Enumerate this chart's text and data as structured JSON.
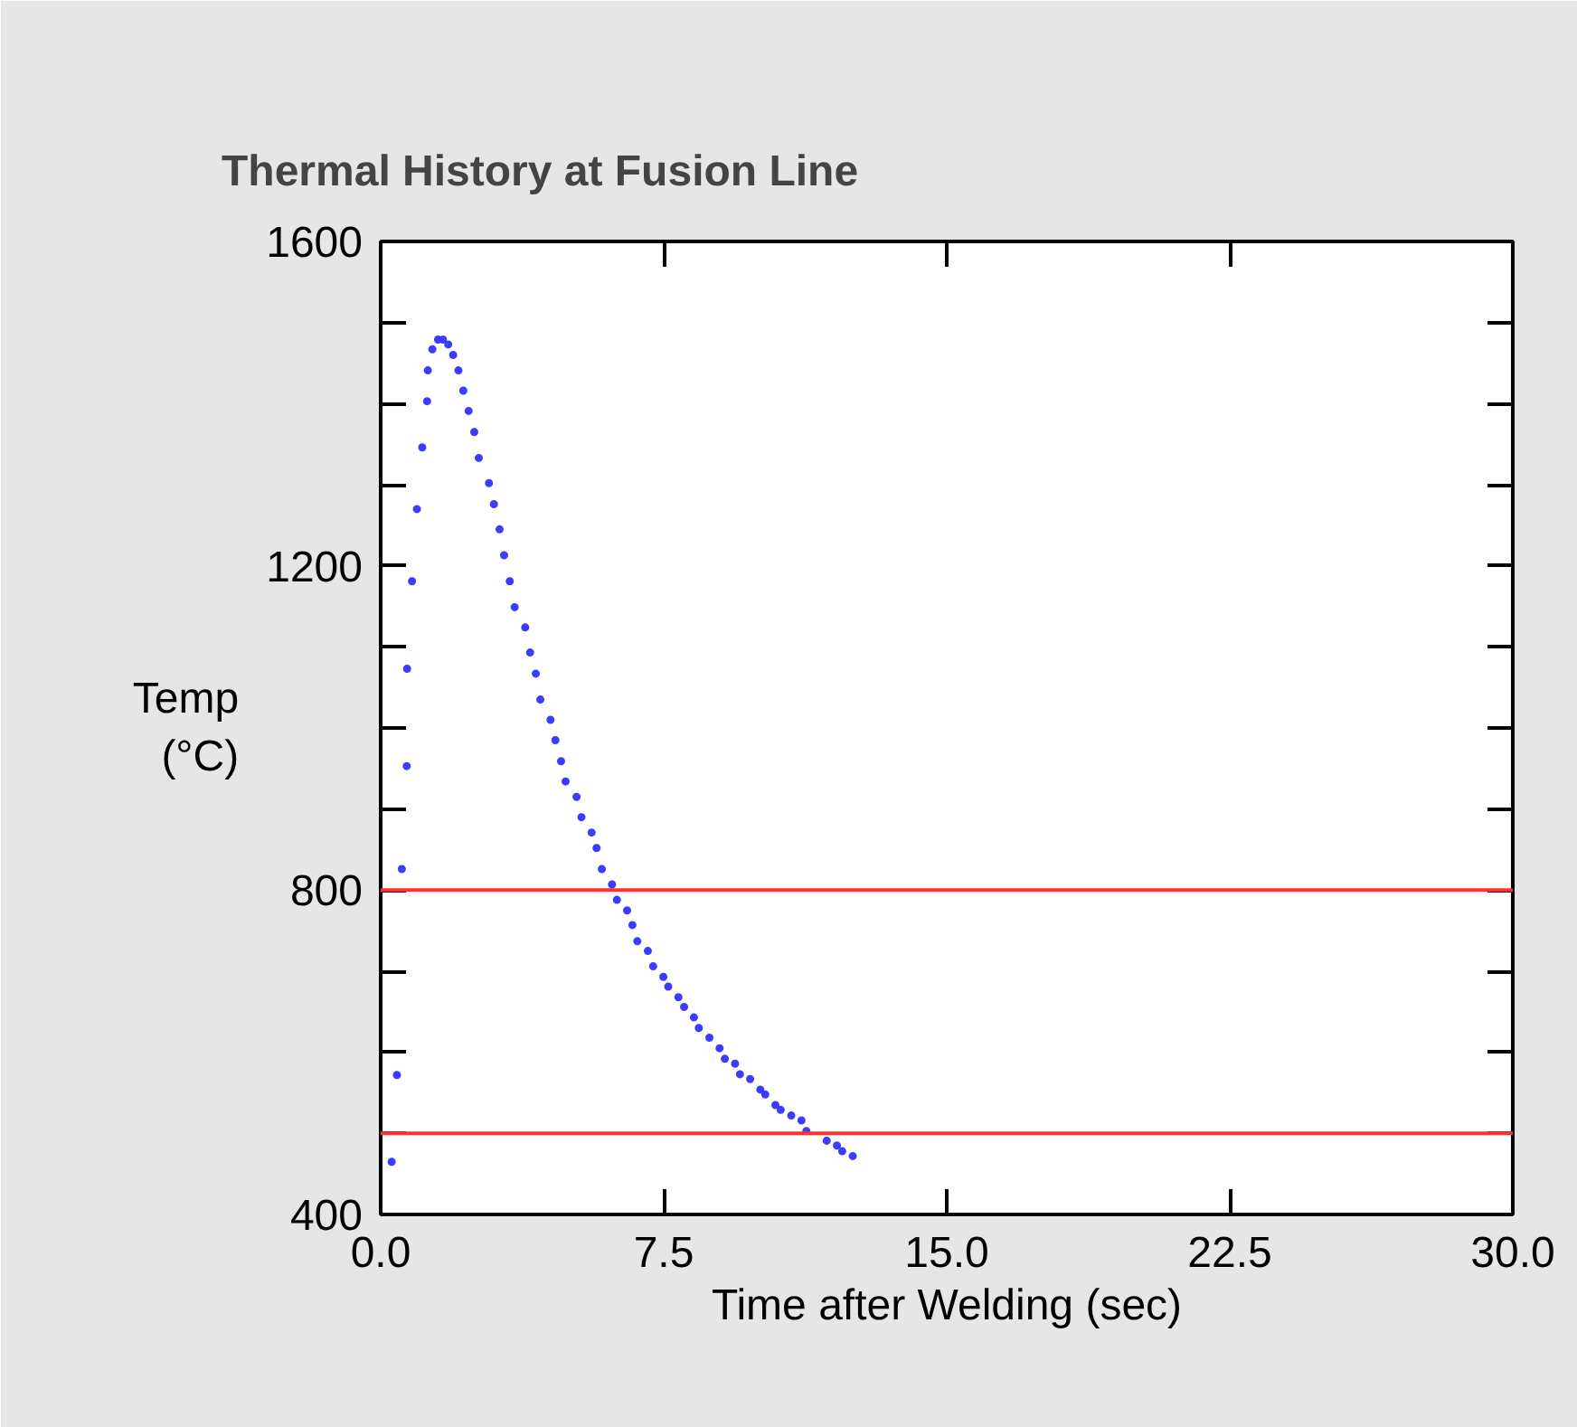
{
  "chart_data": {
    "type": "scatter",
    "title": "Thermal History at Fusion Line",
    "xlabel": "Time after Welding (sec)",
    "ylabel": "Temp\n(°C)",
    "xlim": [
      0,
      30
    ],
    "xticks": [
      {
        "value": 0,
        "label": "0.0"
      },
      7.5,
      {
        "value": 15,
        "label": "15.0"
      },
      22.5,
      {
        "value": 30,
        "label": "30.0"
      }
    ],
    "ylim": [
      400,
      1600
    ],
    "yticks": [
      400,
      {
        "value": 500,
        "label": null
      },
      {
        "value": 600,
        "label": null
      },
      {
        "value": 700,
        "label": null
      },
      800,
      {
        "value": 900,
        "label": null
      },
      {
        "value": 1000,
        "label": null
      },
      {
        "value": 1100,
        "label": null
      },
      1200,
      {
        "value": 1300,
        "label": null
      },
      {
        "value": 1400,
        "label": null
      },
      {
        "value": 1500,
        "label": null
      },
      1600
    ],
    "grid": false,
    "marker": "circle",
    "series": [
      {
        "color": "#3c3cff",
        "x": [
          0.29,
          0.43,
          0.56,
          0.69,
          0.7,
          0.83,
          0.96,
          1.1,
          1.23,
          1.25,
          1.37,
          1.52,
          1.65,
          1.79,
          1.92,
          2.06,
          2.19,
          2.33,
          2.48,
          2.6,
          2.87,
          3.0,
          3.15,
          3.27,
          3.42,
          3.55,
          3.83,
          3.96,
          4.11,
          4.23,
          4.5,
          4.63,
          4.78,
          4.9,
          5.19,
          5.32,
          5.59,
          5.72,
          5.86,
          6.13,
          6.26,
          6.53,
          6.67,
          6.8,
          7.08,
          7.22,
          7.49,
          7.62,
          7.89,
          8.04,
          8.3,
          8.43,
          8.71,
          8.98,
          9.12,
          9.39,
          9.52,
          9.79,
          10.06,
          10.19,
          10.46,
          10.6,
          10.88,
          11.15,
          11.28,
          11.82,
          12.09,
          12.23,
          12.51
        ],
        "values": [
          465,
          572,
          826,
          953,
          1073,
          1181,
          1270,
          1346,
          1403,
          1441,
          1467,
          1479,
          1479,
          1473,
          1460,
          1441,
          1416,
          1391,
          1365,
          1333,
          1302,
          1276,
          1245,
          1213,
          1181,
          1149,
          1124,
          1093,
          1067,
          1035,
          1010,
          985,
          959,
          934,
          915,
          890,
          871,
          852,
          826,
          807,
          788,
          775,
          757,
          737,
          725,
          706,
          693,
          681,
          668,
          656,
          643,
          630,
          618,
          605,
          592,
          586,
          573,
          567,
          554,
          548,
          535,
          529,
          522,
          516,
          503,
          491,
          485,
          478,
          472
        ]
      }
    ],
    "ref_lines": [
      {
        "axis": "y",
        "value": 800,
        "color": "#ff3030"
      },
      {
        "axis": "y",
        "value": 500,
        "color": "#ff3030"
      }
    ]
  }
}
